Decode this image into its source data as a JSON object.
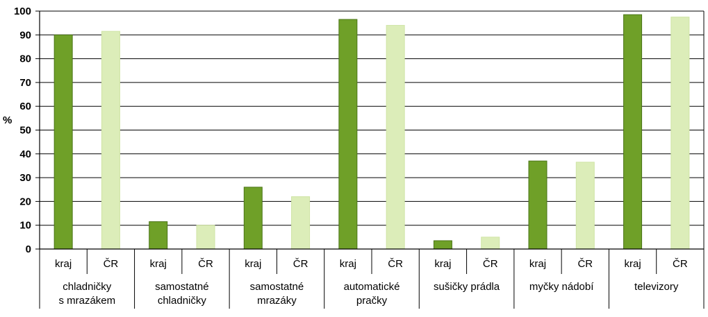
{
  "chart_data": {
    "type": "bar",
    "ylabel": "%",
    "ylim": [
      0,
      100
    ],
    "yticks": [
      0,
      10,
      20,
      30,
      40,
      50,
      60,
      70,
      80,
      90,
      100
    ],
    "grid": true,
    "groups": [
      {
        "label_lines": [
          "chladničky",
          "s mrazákem"
        ],
        "values": [
          90,
          91.5
        ]
      },
      {
        "label_lines": [
          "samostatné",
          "chladničky"
        ],
        "values": [
          11.5,
          10
        ]
      },
      {
        "label_lines": [
          "samostatné",
          "mrazáky"
        ],
        "values": [
          26,
          22
        ]
      },
      {
        "label_lines": [
          "automatické",
          "pračky"
        ],
        "values": [
          96.5,
          94
        ]
      },
      {
        "label_lines": [
          "sušičky prádla"
        ],
        "values": [
          3.5,
          5
        ]
      },
      {
        "label_lines": [
          "myčky nádobí"
        ],
        "values": [
          37,
          36.5
        ]
      },
      {
        "label_lines": [
          "televizory"
        ],
        "values": [
          98.5,
          97.5
        ]
      }
    ],
    "bar_labels": [
      "kraj",
      "ČR"
    ],
    "colors": {
      "kraj": "#6fa028",
      "kraj_stroke": "#4a7417",
      "cr": "#dcedb9",
      "cr_stroke": "#cfe4a5",
      "grid": "#000000"
    }
  }
}
